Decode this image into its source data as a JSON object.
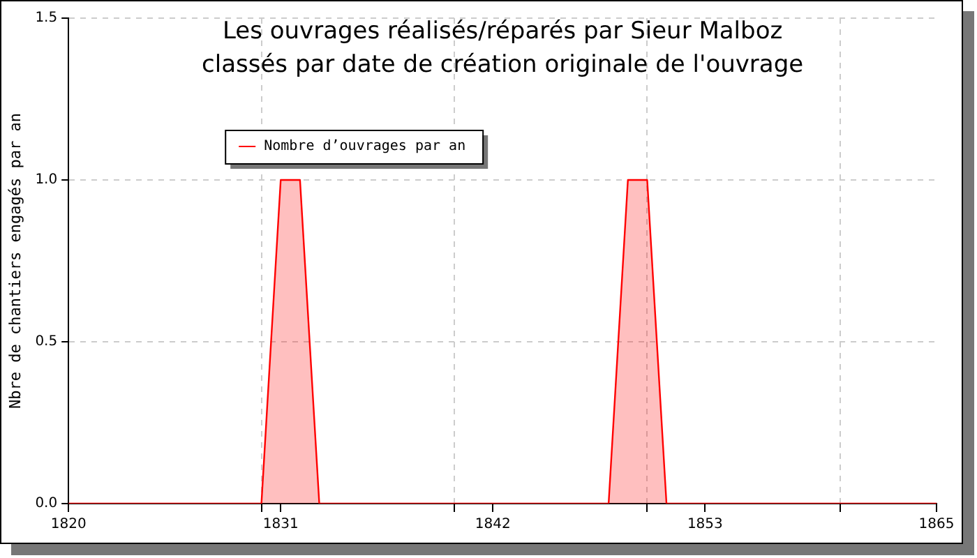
{
  "chart_data": {
    "type": "area",
    "title": "Les ouvrages réalisés/réparés par Sieur Malboz classés par date de création originale de l'ouvrage",
    "ylabel": "Nbre de chantiers engagés par an",
    "x": [
      1820,
      1830,
      1831,
      1832,
      1833,
      1848,
      1849,
      1850,
      1851,
      1865
    ],
    "series": [
      {
        "name": "Nombre d’ouvrages par an",
        "color": "#ff0000",
        "values": [
          0,
          0,
          1,
          1,
          0,
          0,
          1,
          1,
          0,
          0
        ]
      }
    ],
    "xlim": [
      1820,
      1865
    ],
    "xticks": [
      1820,
      {
        "value": 1830,
        "label": null
      },
      1831,
      {
        "value": 1840,
        "label": null
      },
      1842,
      {
        "value": 1850,
        "label": null
      },
      1853,
      {
        "value": 1860,
        "label": null
      },
      1865
    ],
    "ylim": [
      0,
      1.5
    ],
    "yticks": [
      {
        "value": 0,
        "label": "0.0"
      },
      {
        "value": 0.5,
        "label": "0.5"
      },
      {
        "value": 1,
        "label": "1.0"
      },
      {
        "value": 1.5,
        "label": "1.5"
      }
    ],
    "grid": true,
    "legend": "top left"
  }
}
